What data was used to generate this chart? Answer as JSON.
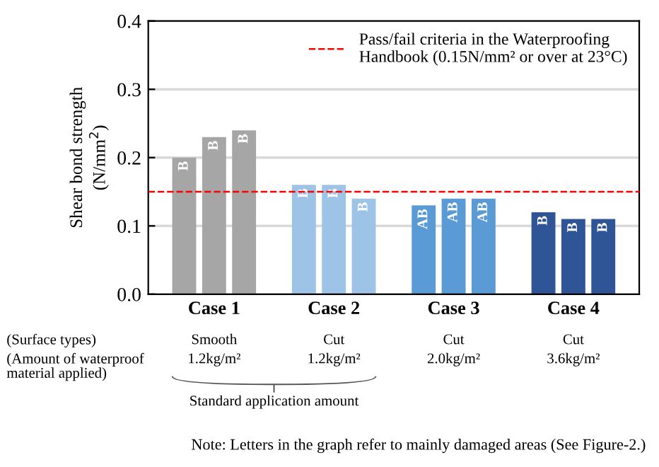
{
  "chart_data": {
    "type": "bar",
    "ylabel": "Shear bond strength\n(N/mm$^{2}$)",
    "categories": [
      "Case 1",
      "Case 2",
      "Case 3",
      "Case 4"
    ],
    "series": [
      {
        "colors": [
          "#a6a6a6",
          "#9dc3e6",
          "#5b9bd5",
          "#2f5597"
        ],
        "values": [
          0.2,
          0.16,
          0.13,
          0.12
        ],
        "value_labels": [
          "B",
          "B",
          "AB",
          "B"
        ]
      },
      {
        "colors": [
          "#a6a6a6",
          "#9dc3e6",
          "#5b9bd5",
          "#2f5597"
        ],
        "values": [
          0.23,
          0.16,
          0.14,
          0.11
        ],
        "value_labels": [
          "B",
          "B",
          "AB",
          "B"
        ]
      },
      {
        "colors": [
          "#a6a6a6",
          "#9dc3e6",
          "#5b9bd5",
          "#2f5597"
        ],
        "values": [
          0.24,
          0.14,
          0.14,
          0.11
        ],
        "value_labels": [
          "B",
          "B",
          "AB",
          "B"
        ]
      }
    ],
    "ylim": [
      0,
      0.4
    ],
    "yticks": [
      {
        "value": 0,
        "label": "0.0"
      },
      0.1,
      0.2,
      0.3,
      0.4
    ],
    "grid": "y",
    "legend": "top right",
    "ref_lines": [
      {
        "axis": "y",
        "value": 0.15,
        "label": "Pass/fail criteria in the Waterproofing\nHandbook (0.15N/mm² or over at 23°C)",
        "color": "#ff0000",
        "line_style": "dashed"
      }
    ],
    "annotations": [
      "(Surface types)",
      "(Amount of waterproof\nmaterial applied)",
      "Smooth",
      "Cut",
      "Cut",
      "Cut",
      "1.2kg/m²",
      "1.2kg/m²",
      "2.0kg/m²",
      "3.6kg/m²",
      "Standard application amount",
      "Note: Letters in the graph refer to mainly damaged areas (See Figure-2.)"
    ]
  }
}
